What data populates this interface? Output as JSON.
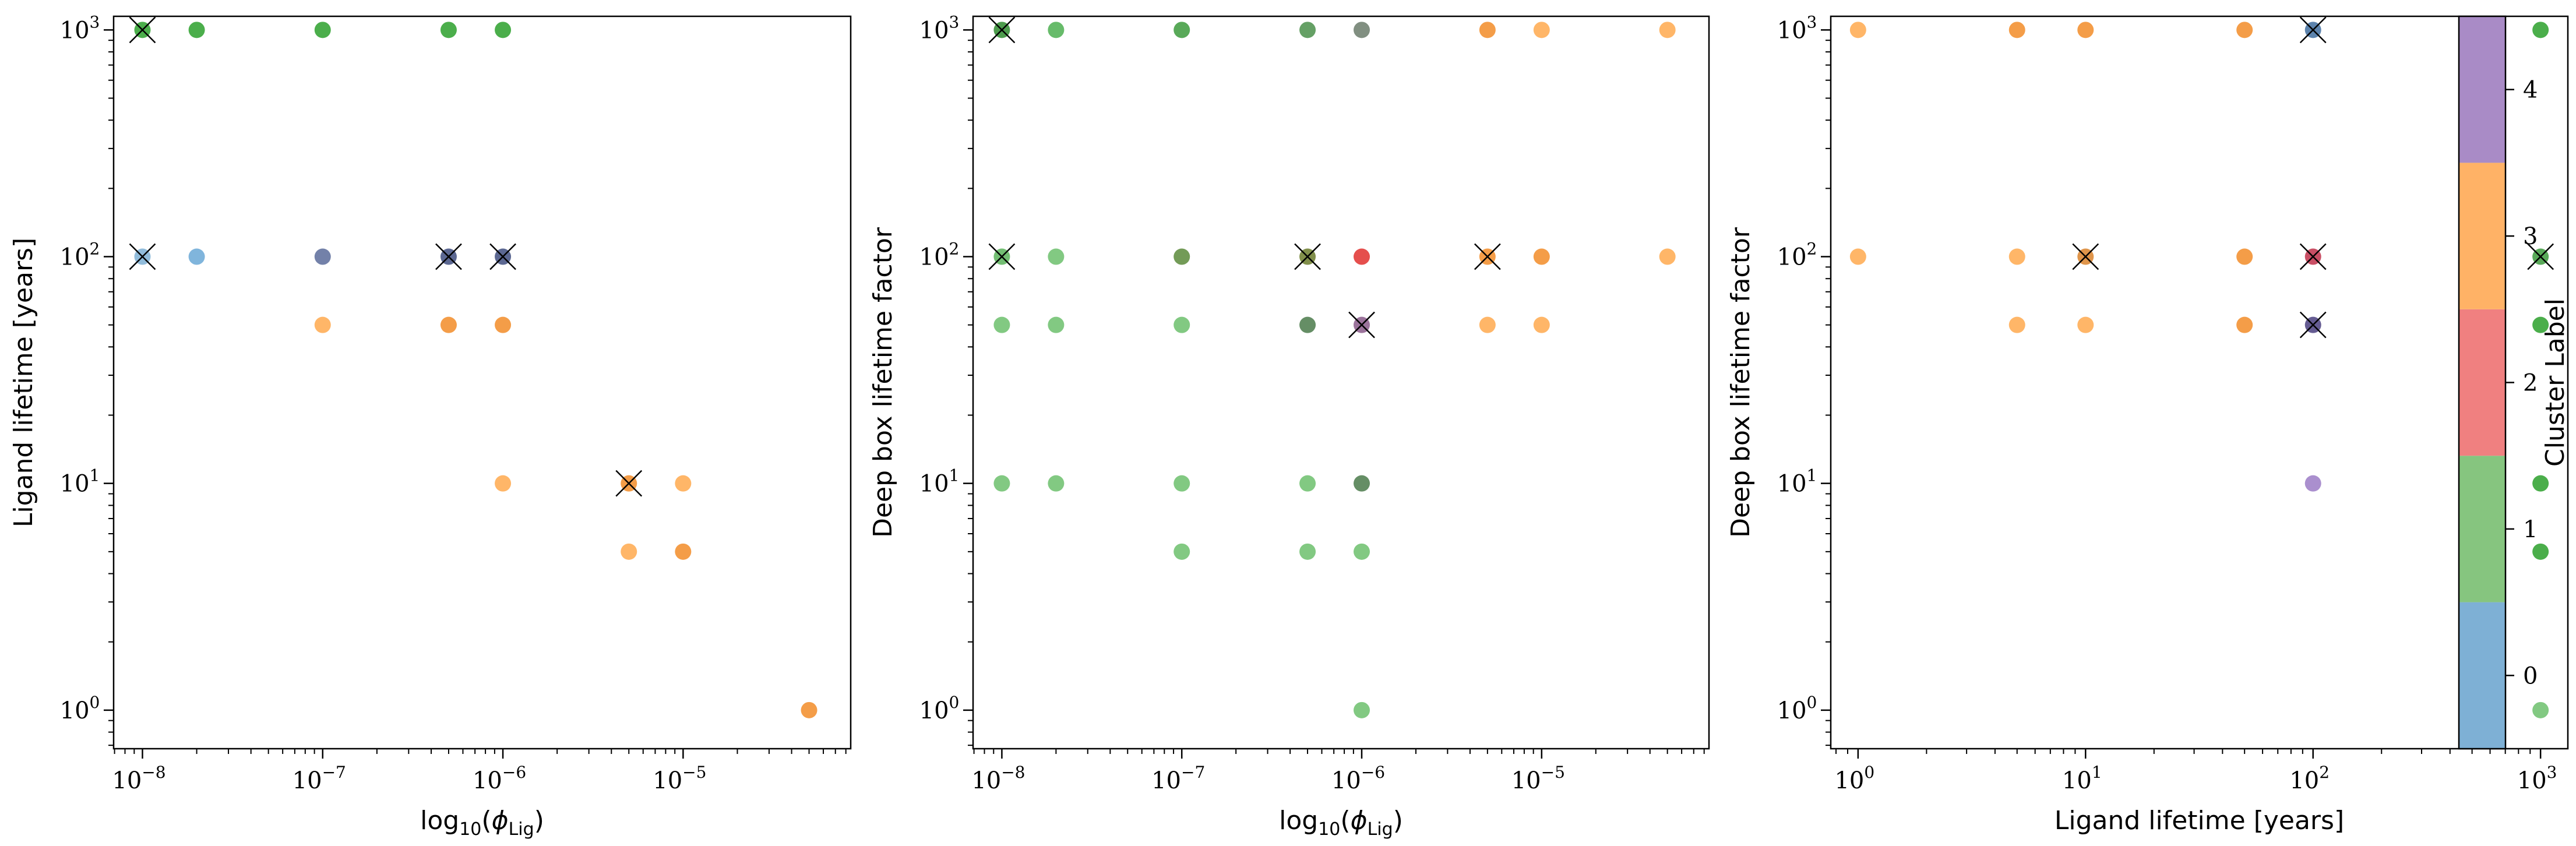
{
  "figure": {
    "colorbar": {
      "label": "Cluster Label",
      "ticks": [
        "0",
        "1",
        "2",
        "3",
        "4"
      ],
      "colors": [
        "#7eb0d5",
        "#86c57f",
        "#f08080",
        "#ffb266",
        "#a98bc6"
      ]
    }
  },
  "chart_data": [
    {
      "type": "scatter",
      "xlabel_prefix": "log",
      "xlabel_sub": "10",
      "xlabel_arg": "ϕ",
      "xlabel_arg_sub": "Lig",
      "ylabel": "Ligand lifetime [years]",
      "xscale": "log",
      "yscale": "log",
      "x_ticks": [
        "10^-8",
        "10^-7",
        "10^-6",
        "10^-5"
      ],
      "y_ticks": [
        "10^0",
        "10^1",
        "10^2",
        "10^3"
      ],
      "points": [
        {
          "x": 1e-08,
          "y": 1000,
          "color": "#2ca02c",
          "marked": true
        },
        {
          "x": 2e-08,
          "y": 1000,
          "color": "#2ca02c"
        },
        {
          "x": 1e-07,
          "y": 1000,
          "color": "#2ca02c"
        },
        {
          "x": 5e-07,
          "y": 1000,
          "color": "#2ca02c"
        },
        {
          "x": 1e-06,
          "y": 1000,
          "color": "#2ca02c"
        },
        {
          "x": 1e-08,
          "y": 100,
          "color": "#7eb0d5",
          "marked": true
        },
        {
          "x": 2e-08,
          "y": 100,
          "color": "#6aa8d6"
        },
        {
          "x": 1e-07,
          "y": 100,
          "color": "#5b6b9a"
        },
        {
          "x": 5e-07,
          "y": 100,
          "color": "#3f4d7f",
          "marked": true
        },
        {
          "x": 1e-06,
          "y": 100,
          "color": "#3f4d7f",
          "marked": true
        },
        {
          "x": 1e-07,
          "y": 50,
          "color": "#ffa94d"
        },
        {
          "x": 5e-07,
          "y": 50,
          "color": "#f28c28"
        },
        {
          "x": 1e-06,
          "y": 50,
          "color": "#f28c28"
        },
        {
          "x": 1e-06,
          "y": 10,
          "color": "#ffa94d"
        },
        {
          "x": 5e-06,
          "y": 10,
          "color": "#f28c28",
          "marked": true
        },
        {
          "x": 1e-05,
          "y": 10,
          "color": "#ffa94d"
        },
        {
          "x": 5e-06,
          "y": 5,
          "color": "#ffa94d"
        },
        {
          "x": 1e-05,
          "y": 5,
          "color": "#f28c28"
        },
        {
          "x": 5e-05,
          "y": 1,
          "color": "#f28c28"
        }
      ]
    },
    {
      "type": "scatter",
      "xlabel_prefix": "log",
      "xlabel_sub": "10",
      "xlabel_arg": "ϕ",
      "xlabel_arg_sub": "Lig",
      "ylabel": "Deep box lifetime factor",
      "xscale": "log",
      "yscale": "log",
      "x_ticks": [
        "10^-8",
        "10^-7",
        "10^-6",
        "10^-5"
      ],
      "y_ticks": [
        "10^0",
        "10^1",
        "10^2",
        "10^3"
      ],
      "points": [
        {
          "x": 1e-08,
          "y": 1000,
          "color": "#2e8b2e",
          "marked": true
        },
        {
          "x": 2e-08,
          "y": 1000,
          "color": "#4caf50"
        },
        {
          "x": 1e-07,
          "y": 1000,
          "color": "#3c9a3c"
        },
        {
          "x": 5e-07,
          "y": 1000,
          "color": "#4a8f4a"
        },
        {
          "x": 1e-06,
          "y": 1000,
          "color": "#6b7b6b"
        },
        {
          "x": 5e-06,
          "y": 1000,
          "color": "#f28c28"
        },
        {
          "x": 1e-05,
          "y": 1000,
          "color": "#ffa94d"
        },
        {
          "x": 5e-05,
          "y": 1000,
          "color": "#ffa94d"
        },
        {
          "x": 1e-08,
          "y": 100,
          "color": "#5ab35a",
          "marked": true
        },
        {
          "x": 2e-08,
          "y": 100,
          "color": "#6cc06c"
        },
        {
          "x": 1e-07,
          "y": 100,
          "color": "#5a8a3a"
        },
        {
          "x": 5e-07,
          "y": 100,
          "color": "#6b7b2b",
          "marked": true
        },
        {
          "x": 1e-06,
          "y": 100,
          "color": "#e0302e"
        },
        {
          "x": 5e-06,
          "y": 100,
          "color": "#f28c28",
          "marked": true
        },
        {
          "x": 1e-05,
          "y": 100,
          "color": "#f28c28"
        },
        {
          "x": 5e-05,
          "y": 100,
          "color": "#ffa94d"
        },
        {
          "x": 1e-08,
          "y": 50,
          "color": "#6cc06c"
        },
        {
          "x": 2e-08,
          "y": 50,
          "color": "#6cc06c"
        },
        {
          "x": 1e-07,
          "y": 50,
          "color": "#6cc06c"
        },
        {
          "x": 5e-07,
          "y": 50,
          "color": "#4a7a4a"
        },
        {
          "x": 1e-06,
          "y": 50,
          "color": "#8a5a8a",
          "marked": true
        },
        {
          "x": 5e-06,
          "y": 50,
          "color": "#ffa94d"
        },
        {
          "x": 1e-05,
          "y": 50,
          "color": "#ffa94d"
        },
        {
          "x": 1e-08,
          "y": 10,
          "color": "#6cc06c"
        },
        {
          "x": 2e-08,
          "y": 10,
          "color": "#6cc06c"
        },
        {
          "x": 1e-07,
          "y": 10,
          "color": "#6cc06c"
        },
        {
          "x": 5e-07,
          "y": 10,
          "color": "#6cc06c"
        },
        {
          "x": 1e-06,
          "y": 10,
          "color": "#4a7a4a"
        },
        {
          "x": 1e-07,
          "y": 5,
          "color": "#6cc06c"
        },
        {
          "x": 5e-07,
          "y": 5,
          "color": "#6cc06c"
        },
        {
          "x": 1e-06,
          "y": 5,
          "color": "#6cc06c"
        },
        {
          "x": 1e-06,
          "y": 1,
          "color": "#6cc06c"
        }
      ]
    },
    {
      "type": "scatter",
      "xlabel": "Ligand lifetime [years]",
      "ylabel": "Deep box lifetime factor",
      "xscale": "log",
      "yscale": "log",
      "x_ticks": [
        "10^0",
        "10^1",
        "10^2",
        "10^3"
      ],
      "y_ticks": [
        "10^0",
        "10^1",
        "10^2",
        "10^3"
      ],
      "points": [
        {
          "x": 1,
          "y": 1000,
          "color": "#ffa94d"
        },
        {
          "x": 5,
          "y": 1000,
          "color": "#f28c28"
        },
        {
          "x": 10,
          "y": 1000,
          "color": "#f28c28"
        },
        {
          "x": 50,
          "y": 1000,
          "color": "#f28c28"
        },
        {
          "x": 100,
          "y": 1000,
          "color": "#3f6d9f",
          "marked": true
        },
        {
          "x": 1000,
          "y": 1000,
          "color": "#2ca02c"
        },
        {
          "x": 1,
          "y": 100,
          "color": "#ffa94d"
        },
        {
          "x": 5,
          "y": 100,
          "color": "#ffa94d"
        },
        {
          "x": 10,
          "y": 100,
          "color": "#d9822b",
          "marked": true
        },
        {
          "x": 50,
          "y": 100,
          "color": "#f28c28"
        },
        {
          "x": 100,
          "y": 100,
          "color": "#c0304a",
          "marked": true
        },
        {
          "x": 1000,
          "y": 100,
          "color": "#3c9a3c",
          "marked": true
        },
        {
          "x": 5,
          "y": 50,
          "color": "#ffa94d"
        },
        {
          "x": 10,
          "y": 50,
          "color": "#ffa94d"
        },
        {
          "x": 50,
          "y": 50,
          "color": "#f28c28"
        },
        {
          "x": 100,
          "y": 50,
          "color": "#4a3f7f",
          "marked": true
        },
        {
          "x": 1000,
          "y": 50,
          "color": "#2ca02c"
        },
        {
          "x": 100,
          "y": 10,
          "color": "#9b7bc6"
        },
        {
          "x": 1000,
          "y": 10,
          "color": "#2ca02c"
        },
        {
          "x": 1000,
          "y": 5,
          "color": "#2ca02c"
        },
        {
          "x": 1000,
          "y": 1,
          "color": "#6cc06c"
        }
      ]
    }
  ]
}
